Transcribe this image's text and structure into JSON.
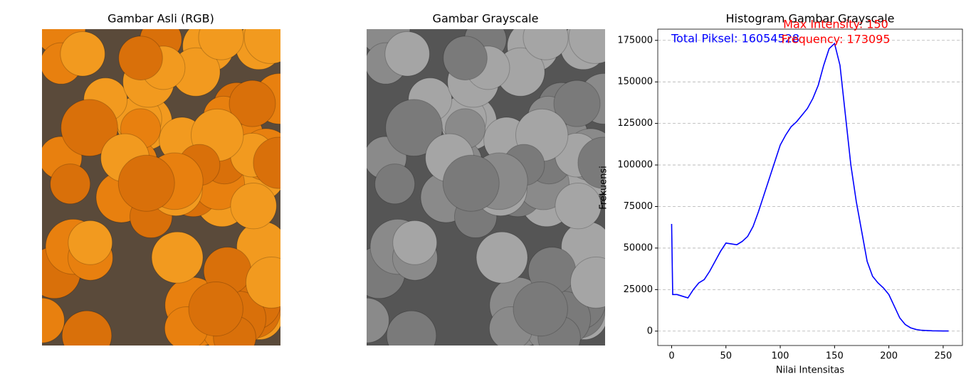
{
  "panels": [
    {
      "title": "Gambar Asli (RGB)"
    },
    {
      "title": "Gambar Grayscale"
    }
  ],
  "chart_data": {
    "type": "line",
    "title": "Histogram Gambar Grayscale",
    "x_label": "Nilai Intensitas",
    "y_label": "Frekuensi",
    "x": [
      0,
      1,
      5,
      10,
      15,
      20,
      25,
      30,
      35,
      40,
      45,
      50,
      55,
      60,
      65,
      70,
      75,
      80,
      85,
      90,
      95,
      100,
      105,
      110,
      115,
      120,
      125,
      130,
      135,
      140,
      145,
      150,
      155,
      160,
      165,
      170,
      175,
      180,
      185,
      190,
      195,
      200,
      205,
      210,
      215,
      220,
      225,
      230,
      240,
      250,
      255
    ],
    "values": [
      64500,
      22000,
      22000,
      21000,
      20000,
      25000,
      29000,
      31000,
      36000,
      42000,
      48000,
      53000,
      52500,
      52000,
      54000,
      57000,
      63000,
      72000,
      82000,
      92000,
      102000,
      112000,
      118000,
      123000,
      126000,
      130000,
      134000,
      140000,
      148000,
      160000,
      170000,
      173095,
      160000,
      130000,
      100000,
      78000,
      60000,
      42000,
      33000,
      29000,
      26000,
      22000,
      15000,
      8000,
      4000,
      2000,
      1000,
      500,
      200,
      100,
      100
    ],
    "color": "#0000ff",
    "xlim": [
      -12.75,
      267.75
    ],
    "xticks": [
      0,
      50,
      100,
      150,
      200,
      250
    ],
    "ylim": [
      -8655,
      181750
    ],
    "yticks": [
      0,
      25000,
      50000,
      75000,
      100000,
      125000,
      150000,
      175000
    ],
    "grid": "y",
    "annotations": [
      {
        "text": "Total Piksel: 16054528",
        "color": "#0000ff"
      },
      {
        "text": "Max Intensity: 150",
        "color": "#ff0000"
      },
      {
        "text": "Frequency: 173095",
        "color": "#ff0000"
      }
    ]
  }
}
